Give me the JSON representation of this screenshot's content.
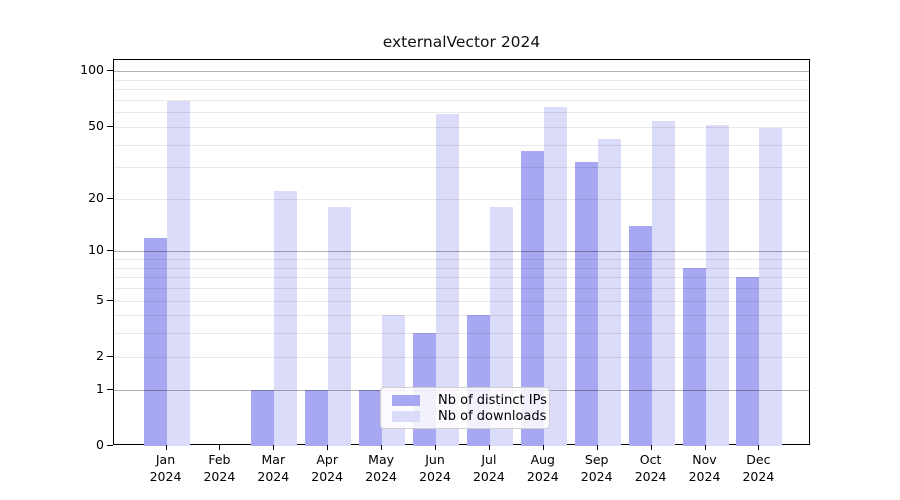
{
  "chart_data": {
    "type": "bar",
    "title": "externalVector 2024",
    "categories": [
      {
        "month": "Jan",
        "year": "2024"
      },
      {
        "month": "Feb",
        "year": "2024"
      },
      {
        "month": "Mar",
        "year": "2024"
      },
      {
        "month": "Apr",
        "year": "2024"
      },
      {
        "month": "May",
        "year": "2024"
      },
      {
        "month": "Jun",
        "year": "2024"
      },
      {
        "month": "Jul",
        "year": "2024"
      },
      {
        "month": "Aug",
        "year": "2024"
      },
      {
        "month": "Sep",
        "year": "2024"
      },
      {
        "month": "Oct",
        "year": "2024"
      },
      {
        "month": "Nov",
        "year": "2024"
      },
      {
        "month": "Dec",
        "year": "2024"
      }
    ],
    "series": [
      {
        "name": "Nb of distinct IPs",
        "color": "#a7a7f2",
        "values": [
          12,
          0,
          1,
          1,
          1,
          3,
          4,
          37,
          32,
          14,
          8,
          7
        ]
      },
      {
        "name": "Nb of downloads",
        "color": "#dbdbfa",
        "values": [
          69,
          0,
          22,
          18,
          4,
          59,
          18,
          64,
          43,
          54,
          51,
          49
        ]
      }
    ],
    "yscale": "log1p",
    "ylim": [
      0,
      115
    ],
    "yticks": [
      0,
      1,
      2,
      5,
      10,
      20,
      50,
      100
    ],
    "grid_minor": [
      2,
      3,
      4,
      5,
      6,
      7,
      8,
      9,
      20,
      30,
      40,
      50,
      60,
      70,
      80,
      90
    ],
    "grid_major": [
      1,
      10,
      100
    ],
    "grid": "on",
    "legend_position": "lower center",
    "xlabel": "",
    "ylabel": ""
  }
}
